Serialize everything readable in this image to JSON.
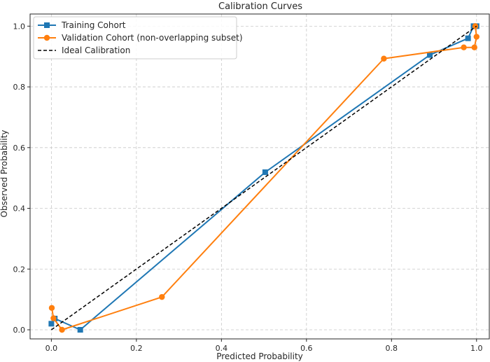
{
  "chart_data": {
    "type": "line",
    "title": "Calibration Curves",
    "xlabel": "Predicted Probability",
    "ylabel": "Observed Probability",
    "xlim": [
      -0.05,
      1.03
    ],
    "ylim": [
      -0.03,
      1.04
    ],
    "xticks": [
      "0.0",
      "0.2",
      "0.4",
      "0.6",
      "0.8",
      "1.0"
    ],
    "yticks": [
      "0.0",
      "0.2",
      "0.4",
      "0.6",
      "0.8",
      "1.0"
    ],
    "grid": true,
    "legend_position": "top-left",
    "series": [
      {
        "name": "Training Cohort",
        "color": "#1f77b4",
        "marker": "square",
        "x": [
          0.0,
          0.008,
          0.068,
          0.503,
          0.89,
          0.98,
          0.993,
          1.0
        ],
        "y": [
          0.02,
          0.037,
          0.0,
          0.519,
          0.905,
          0.96,
          1.0,
          1.0
        ]
      },
      {
        "name": "Validation Cohort (non-overlapping subset)",
        "color": "#ff7f0e",
        "marker": "circle",
        "x": [
          0.001,
          0.005,
          0.025,
          0.26,
          0.782,
          0.97,
          0.995,
          1.0,
          0.997
        ],
        "y": [
          0.072,
          0.038,
          0.0,
          0.108,
          0.893,
          0.93,
          0.93,
          0.965,
          1.0
        ]
      },
      {
        "name": "Ideal Calibration",
        "color": "#000000",
        "marker": "none",
        "dashed": true,
        "x": [
          0.0,
          1.0
        ],
        "y": [
          0.0,
          1.0
        ]
      }
    ]
  }
}
